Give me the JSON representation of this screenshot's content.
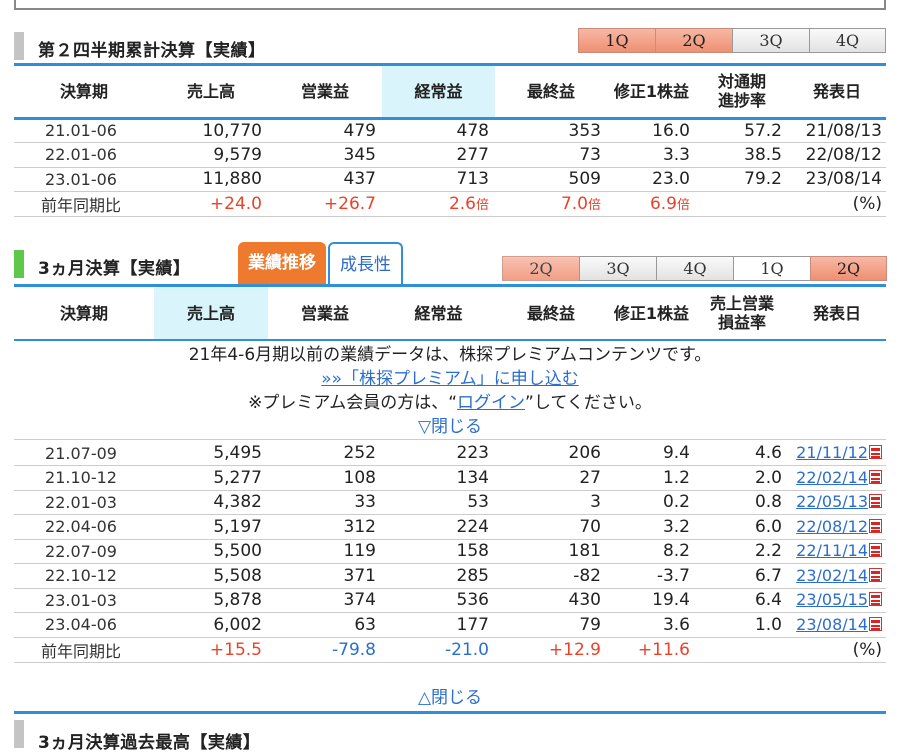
{
  "q2": {
    "title": "第２四半期累計決算【実績】",
    "tabs": [
      "1Q",
      "2Q",
      "3Q",
      "4Q"
    ],
    "headers": [
      "決算期",
      "売上高",
      "営業益",
      "経常益",
      "最終益",
      "修正1株益",
      "対通期\n進捗率",
      "発表日"
    ],
    "rows": [
      [
        "21.01-06",
        "10,770",
        "479",
        "478",
        "353",
        "16.0",
        "57.2",
        "21/08/13"
      ],
      [
        "22.01-06",
        "9,579",
        "345",
        "277",
        "73",
        "3.3",
        "38.5",
        "22/08/12"
      ],
      [
        "23.01-06",
        "11,880",
        "437",
        "713",
        "509",
        "23.0",
        "79.2",
        "23/08/14"
      ]
    ],
    "yoy": {
      "label": "前年同期比",
      "sales": "+24.0",
      "op": "+26.7",
      "ord": "2.6",
      "net": "7.0",
      "eps": "6.9",
      "bai": "倍",
      "unit": "(%)"
    }
  },
  "m3": {
    "title": "3ヵ月決算【実績】",
    "seg_on": "業績推移",
    "seg_off": "成長性",
    "tabs": [
      "2Q",
      "3Q",
      "4Q",
      "1Q",
      "2Q"
    ],
    "headers": [
      "決算期",
      "売上高",
      "営業益",
      "経常益",
      "最終益",
      "修正1株益",
      "売上営業\n損益率",
      "発表日"
    ],
    "premium_line1": "21年4-6月期以前の業績データは、株探プレミアムコンテンツです。",
    "premium_link": "»»「株探プレミアム」に申し込む",
    "premium_line3_pre": "※プレミアム会員の方は、“",
    "premium_login": "ログイン",
    "premium_line3_post": "”してください。",
    "close_top": "▽閉じる",
    "rows": [
      [
        "21.07-09",
        "5,495",
        "252",
        "223",
        "206",
        "9.4",
        "4.6",
        "21/11/12"
      ],
      [
        "21.10-12",
        "5,277",
        "108",
        "134",
        "27",
        "1.2",
        "2.0",
        "22/02/14"
      ],
      [
        "22.01-03",
        "4,382",
        "33",
        "53",
        "3",
        "0.2",
        "0.8",
        "22/05/13"
      ],
      [
        "22.04-06",
        "5,197",
        "312",
        "224",
        "70",
        "3.2",
        "6.0",
        "22/08/12"
      ],
      [
        "22.07-09",
        "5,500",
        "119",
        "158",
        "181",
        "8.2",
        "2.2",
        "22/11/14"
      ],
      [
        "22.10-12",
        "5,508",
        "371",
        "285",
        "-82",
        "-3.7",
        "6.7",
        "23/02/14"
      ],
      [
        "23.01-03",
        "5,878",
        "374",
        "536",
        "430",
        "19.4",
        "6.4",
        "23/05/15"
      ],
      [
        "23.04-06",
        "6,002",
        "63",
        "177",
        "79",
        "3.6",
        "1.0",
        "23/08/14"
      ]
    ],
    "yoy": {
      "label": "前年同期比",
      "sales": "+15.5",
      "op": "-79.8",
      "ord": "-21.0",
      "net": "+12.9",
      "eps": "+11.6",
      "unit": "(%)"
    },
    "close_bottom": "△閉じる"
  },
  "next": {
    "title": "3ヵ月決算過去最高【実績】"
  },
  "colors": {
    "accent_blue": "#2f8fd8",
    "orange": "#ee7a2d",
    "red": "#e8432a"
  },
  "icons": {
    "pdf": "pdf-icon"
  }
}
